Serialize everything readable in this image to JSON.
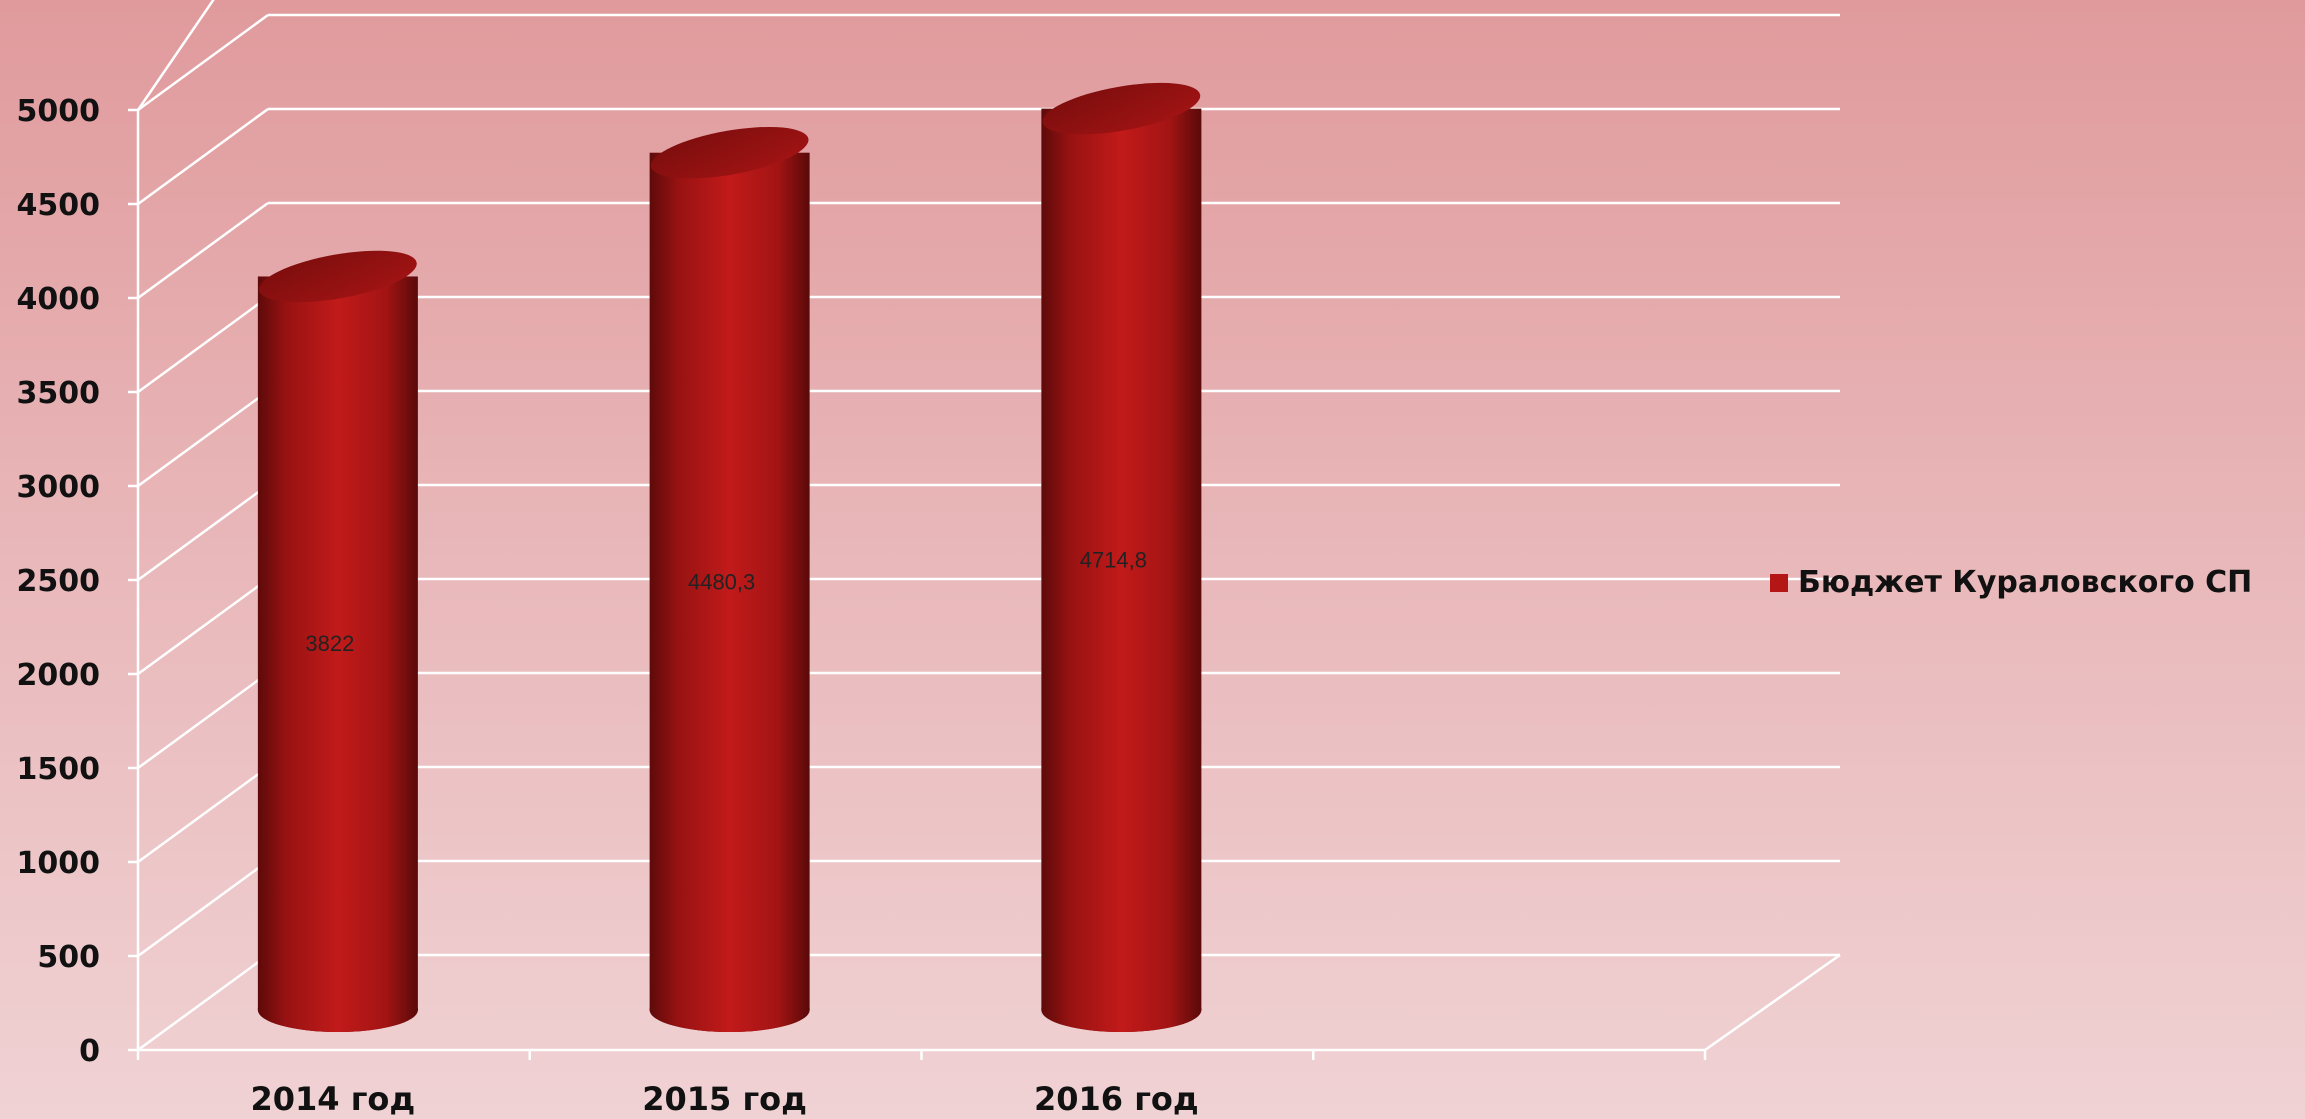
{
  "chart_data": {
    "type": "bar",
    "style": "3d-cylinder",
    "categories": [
      "2014 год",
      "2015 год",
      "2016 год"
    ],
    "series": [
      {
        "name": "Бюджет Кураловского СП",
        "values": [
          3822,
          4480.3,
          4714.8
        ],
        "data_labels": [
          "3822",
          "4480,3",
          "4714,8"
        ],
        "color": "#b41616"
      }
    ],
    "ylim": [
      0,
      5000
    ],
    "yticks": [
      0,
      500,
      1000,
      1500,
      2000,
      2500,
      3000,
      3500,
      4000,
      4500,
      5000
    ],
    "grid": true,
    "legend_position": "right",
    "x_slots": 4
  }
}
